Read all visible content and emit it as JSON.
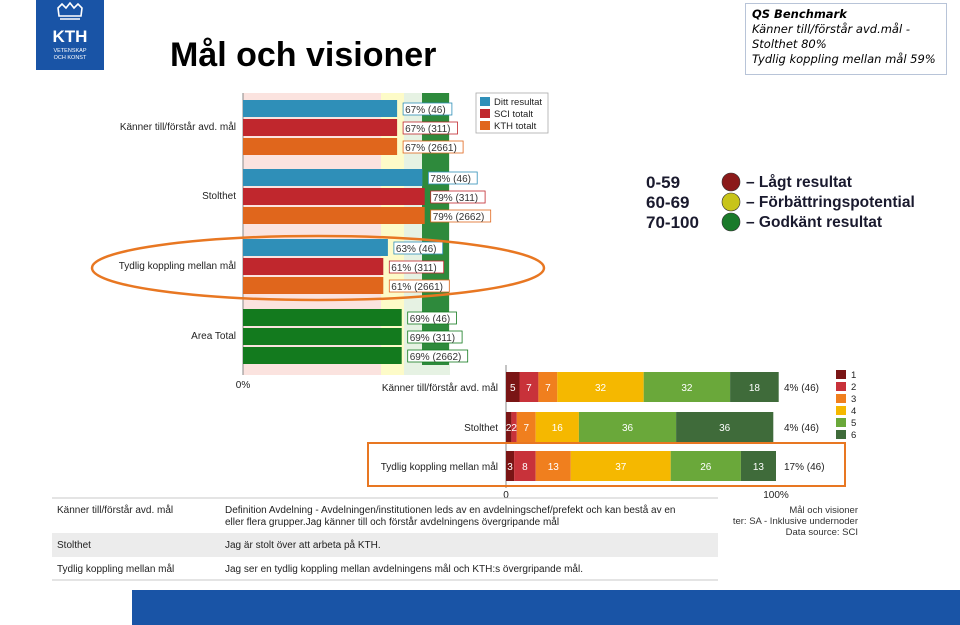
{
  "header": {
    "title": "Mål och visioner",
    "logo_text": [
      "KTH",
      "VETENSKAP",
      "OCH KONST"
    ]
  },
  "qs_box": {
    "heading": "QS Benchmark",
    "lines": [
      "Känner till/förstår avd.mål -",
      "Stolthet 80%",
      "Tydlig koppling mellan mål 59%"
    ]
  },
  "legend_scale": [
    {
      "range": "0-59",
      "label": "– Lågt resultat",
      "color": "#8b1a1a"
    },
    {
      "range": "60-69",
      "label": "– Förbättringspotential",
      "color": "#c8c41a"
    },
    {
      "range": "70-100",
      "label": "– Godkänt resultat",
      "color": "#1a7a2a"
    }
  ],
  "chart_data": [
    {
      "type": "bar",
      "orientation": "horizontal",
      "categories": [
        "Känner till/förstår avd. mål",
        "Stolthet",
        "Tydlig koppling mellan mål",
        "Area Total"
      ],
      "series": [
        {
          "name": "Ditt resultat",
          "color": "#2f8fb8",
          "values": [
            67,
            78,
            63,
            69
          ],
          "n": [
            46,
            46,
            46,
            46
          ]
        },
        {
          "name": "SCI totalt",
          "color": "#c0272d",
          "values": [
            67,
            79,
            61,
            69
          ],
          "n": [
            311,
            311,
            311,
            311
          ]
        },
        {
          "name": "KTH totalt",
          "color": "#e0661c",
          "values": [
            67,
            79,
            61,
            69
          ],
          "n": [
            2661,
            2662,
            2661,
            2662
          ]
        }
      ],
      "area_total_color": "#137a1e",
      "data_labels": [
        [
          "67% (46)",
          "67% (311)",
          "67% (2661)"
        ],
        [
          "78% (46)",
          "79% (311)",
          "79% (2662)"
        ],
        [
          "63% (46)",
          "61% (311)",
          "61% (2661)"
        ],
        [
          "69% (46)",
          "69% (311)",
          "69% (2662)"
        ]
      ],
      "xlabel_tick": "0%",
      "xlim": [
        0,
        100
      ],
      "legend_position": "right",
      "highlighted_category": "Tydlig koppling mellan mål"
    },
    {
      "type": "bar",
      "orientation": "horizontal",
      "stacked": true,
      "categories": [
        "Känner till/förstår avd. mål",
        "Stolthet",
        "Tydlig koppling mellan mål"
      ],
      "series": [
        {
          "name": "1",
          "color": "#7a1515",
          "values": [
            5,
            2,
            3
          ]
        },
        {
          "name": "2",
          "color": "#c8323a",
          "values": [
            7,
            2,
            8
          ]
        },
        {
          "name": "3",
          "color": "#f07f1e",
          "values": [
            7,
            7,
            13
          ]
        },
        {
          "name": "4",
          "color": "#f5b800",
          "values": [
            32,
            16,
            37
          ]
        },
        {
          "name": "5",
          "color": "#6aa83a",
          "values": [
            32,
            36,
            26
          ]
        },
        {
          "name": "6",
          "color": "#3f6b3a",
          "values": [
            18,
            36,
            13
          ]
        }
      ],
      "right_labels": [
        "4% (46)",
        "4% (46)",
        "17% (46)"
      ],
      "x_ticks": [
        "0",
        "100%"
      ],
      "highlighted_category": "Tydlig koppling mellan mål"
    }
  ],
  "notes": [
    "Mål och visioner",
    "ter: SA - Inklusive undernoder",
    "Data source: SCI"
  ],
  "definitions": [
    {
      "term": "Känner till/förstår avd. mål",
      "text": [
        "Definition Avdelning - Avdelningen/institutionen leds av en avdelningschef/prefekt och kan bestå av en",
        "eller flera grupper.Jag känner till och förstår avdelningens övergripande mål"
      ]
    },
    {
      "term": "Stolthet",
      "text": [
        "Jag är stolt över att arbeta på KTH."
      ]
    },
    {
      "term": "Tydlig koppling mellan mål",
      "text": [
        "Jag ser en tydlig koppling mellan avdelningens mål och KTH:s övergripande mål."
      ]
    }
  ]
}
